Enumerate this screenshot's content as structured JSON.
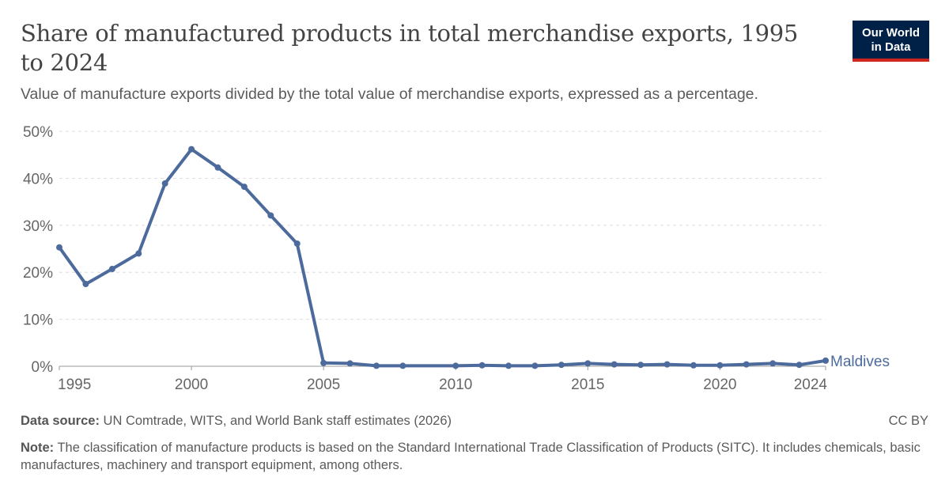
{
  "header": {
    "title": "Share of manufactured products in total merchandise exports, 1995 to 2024",
    "subtitle": "Value of manufacture exports divided by the total value of merchandise exports, expressed as a percentage."
  },
  "logo": {
    "line1": "Our World",
    "line2": "in Data"
  },
  "footer": {
    "source_label": "Data source:",
    "source_text": "UN Comtrade, WITS, and World Bank staff estimates (2026)",
    "license": "CC BY",
    "note_label": "Note:",
    "note_text": "The classification of manufacture products is based on the Standard International Trade Classification of Products (SITC). It includes chemicals, basic manufactures, machinery and transport equipment, among others."
  },
  "colors": {
    "series": "#4c6a9c",
    "grid": "#dddddd",
    "axis": "#666666"
  },
  "chart_data": {
    "type": "line",
    "title": "Share of manufactured products in total merchandise exports, 1995 to 2024",
    "ylim": [
      0,
      50
    ],
    "xlim": [
      1995,
      2024
    ],
    "y_ticks": [
      {
        "value": 0,
        "label": "0%"
      },
      {
        "value": 10,
        "label": "10%"
      },
      {
        "value": 20,
        "label": "20%"
      },
      {
        "value": 30,
        "label": "30%"
      },
      {
        "value": 40,
        "label": "40%"
      },
      {
        "value": 50,
        "label": "50%"
      }
    ],
    "x_ticks": [
      {
        "value": 1995,
        "label": "1995"
      },
      {
        "value": 2000,
        "label": "2000"
      },
      {
        "value": 2005,
        "label": "2005"
      },
      {
        "value": 2010,
        "label": "2010"
      },
      {
        "value": 2015,
        "label": "2015"
      },
      {
        "value": 2020,
        "label": "2020"
      },
      {
        "value": 2024,
        "label": "2024"
      }
    ],
    "grid": "horizontal dashed",
    "series": [
      {
        "name": "Maldives",
        "color": "#4c6a9c",
        "x": [
          1995,
          1996,
          1997,
          1998,
          1999,
          2000,
          2001,
          2002,
          2003,
          2004,
          2005,
          2006,
          2007,
          2008,
          2010,
          2011,
          2012,
          2013,
          2014,
          2015,
          2016,
          2017,
          2018,
          2019,
          2020,
          2021,
          2022,
          2023,
          2024
        ],
        "y": [
          25.3,
          17.5,
          20.7,
          24,
          38.9,
          46.2,
          42.3,
          38.2,
          32.1,
          26.1,
          0.7,
          0.6,
          0.1,
          0.1,
          0.1,
          0.2,
          0.1,
          0.1,
          0.3,
          0.6,
          0.4,
          0.3,
          0.4,
          0.2,
          0.2,
          0.4,
          0.6,
          0.3,
          1.2
        ]
      }
    ]
  }
}
